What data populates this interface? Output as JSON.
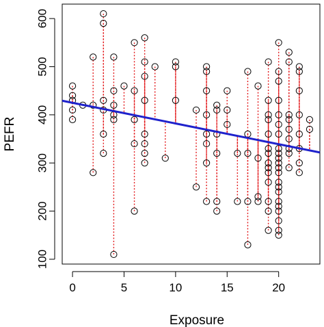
{
  "chart_data": {
    "type": "scatter",
    "xlabel": "Exposure",
    "ylabel": "PEFR",
    "xlim": [
      -1,
      24
    ],
    "ylim": [
      90,
      630
    ],
    "xticks": [
      0,
      5,
      10,
      15,
      20
    ],
    "yticks": [
      100,
      200,
      300,
      400,
      500,
      600
    ],
    "grid": false,
    "regression_line": {
      "intercept": 425,
      "slope": -4.3,
      "color": "#1f22cc"
    },
    "residual_color": "#e31a1c",
    "point_color": "#000000",
    "points": [
      [
        0,
        460
      ],
      [
        0,
        440
      ],
      [
        0,
        430
      ],
      [
        0,
        410
      ],
      [
        0,
        390
      ],
      [
        1,
        420
      ],
      [
        2,
        520
      ],
      [
        2,
        420
      ],
      [
        2,
        280
      ],
      [
        3,
        610
      ],
      [
        3,
        590
      ],
      [
        3,
        430
      ],
      [
        3,
        410
      ],
      [
        3,
        360
      ],
      [
        3,
        320
      ],
      [
        4,
        520
      ],
      [
        4,
        450
      ],
      [
        4,
        420
      ],
      [
        4,
        400
      ],
      [
        4,
        390
      ],
      [
        4,
        110
      ],
      [
        5,
        460
      ],
      [
        6,
        550
      ],
      [
        6,
        450
      ],
      [
        6,
        390
      ],
      [
        6,
        340
      ],
      [
        6,
        200
      ],
      [
        7,
        560
      ],
      [
        7,
        510
      ],
      [
        7,
        480
      ],
      [
        7,
        430
      ],
      [
        7,
        360
      ],
      [
        7,
        340
      ],
      [
        7,
        320
      ],
      [
        7,
        300
      ],
      [
        8,
        500
      ],
      [
        9,
        310
      ],
      [
        10,
        510
      ],
      [
        10,
        500
      ],
      [
        10,
        430
      ],
      [
        12,
        410
      ],
      [
        12,
        250
      ],
      [
        13,
        500
      ],
      [
        13,
        490
      ],
      [
        13,
        450
      ],
      [
        13,
        400
      ],
      [
        13,
        360
      ],
      [
        13,
        340
      ],
      [
        13,
        300
      ],
      [
        13,
        220
      ],
      [
        14,
        420
      ],
      [
        14,
        410
      ],
      [
        14,
        360
      ],
      [
        14,
        320
      ],
      [
        14,
        220
      ],
      [
        14,
        200
      ],
      [
        15,
        450
      ],
      [
        15,
        410
      ],
      [
        15,
        380
      ],
      [
        16,
        320
      ],
      [
        16,
        220
      ],
      [
        17,
        490
      ],
      [
        17,
        360
      ],
      [
        17,
        320
      ],
      [
        17,
        220
      ],
      [
        17,
        130
      ],
      [
        18,
        460
      ],
      [
        18,
        310
      ],
      [
        18,
        230
      ],
      [
        18,
        220
      ],
      [
        19,
        510
      ],
      [
        19,
        430
      ],
      [
        19,
        400
      ],
      [
        19,
        390
      ],
      [
        19,
        360
      ],
      [
        19,
        330
      ],
      [
        19,
        320
      ],
      [
        19,
        300
      ],
      [
        19,
        290
      ],
      [
        19,
        280
      ],
      [
        19,
        260
      ],
      [
        19,
        220
      ],
      [
        19,
        200
      ],
      [
        19,
        160
      ],
      [
        20,
        550
      ],
      [
        20,
        490
      ],
      [
        20,
        470
      ],
      [
        20,
        430
      ],
      [
        20,
        400
      ],
      [
        20,
        380
      ],
      [
        20,
        360
      ],
      [
        20,
        330
      ],
      [
        20,
        320
      ],
      [
        20,
        310
      ],
      [
        20,
        300
      ],
      [
        20,
        290
      ],
      [
        20,
        280
      ],
      [
        20,
        260
      ],
      [
        20,
        250
      ],
      [
        20,
        240
      ],
      [
        20,
        220
      ],
      [
        20,
        210
      ],
      [
        20,
        200
      ],
      [
        20,
        180
      ],
      [
        20,
        160
      ],
      [
        20,
        150
      ],
      [
        21,
        530
      ],
      [
        21,
        510
      ],
      [
        21,
        400
      ],
      [
        21,
        390
      ],
      [
        21,
        370
      ],
      [
        21,
        350
      ],
      [
        21,
        330
      ],
      [
        21,
        320
      ],
      [
        21,
        290
      ],
      [
        22,
        500
      ],
      [
        22,
        490
      ],
      [
        22,
        450
      ],
      [
        22,
        400
      ],
      [
        22,
        360
      ],
      [
        22,
        330
      ],
      [
        22,
        300
      ],
      [
        22,
        280
      ],
      [
        23,
        390
      ],
      [
        23,
        370
      ]
    ]
  }
}
